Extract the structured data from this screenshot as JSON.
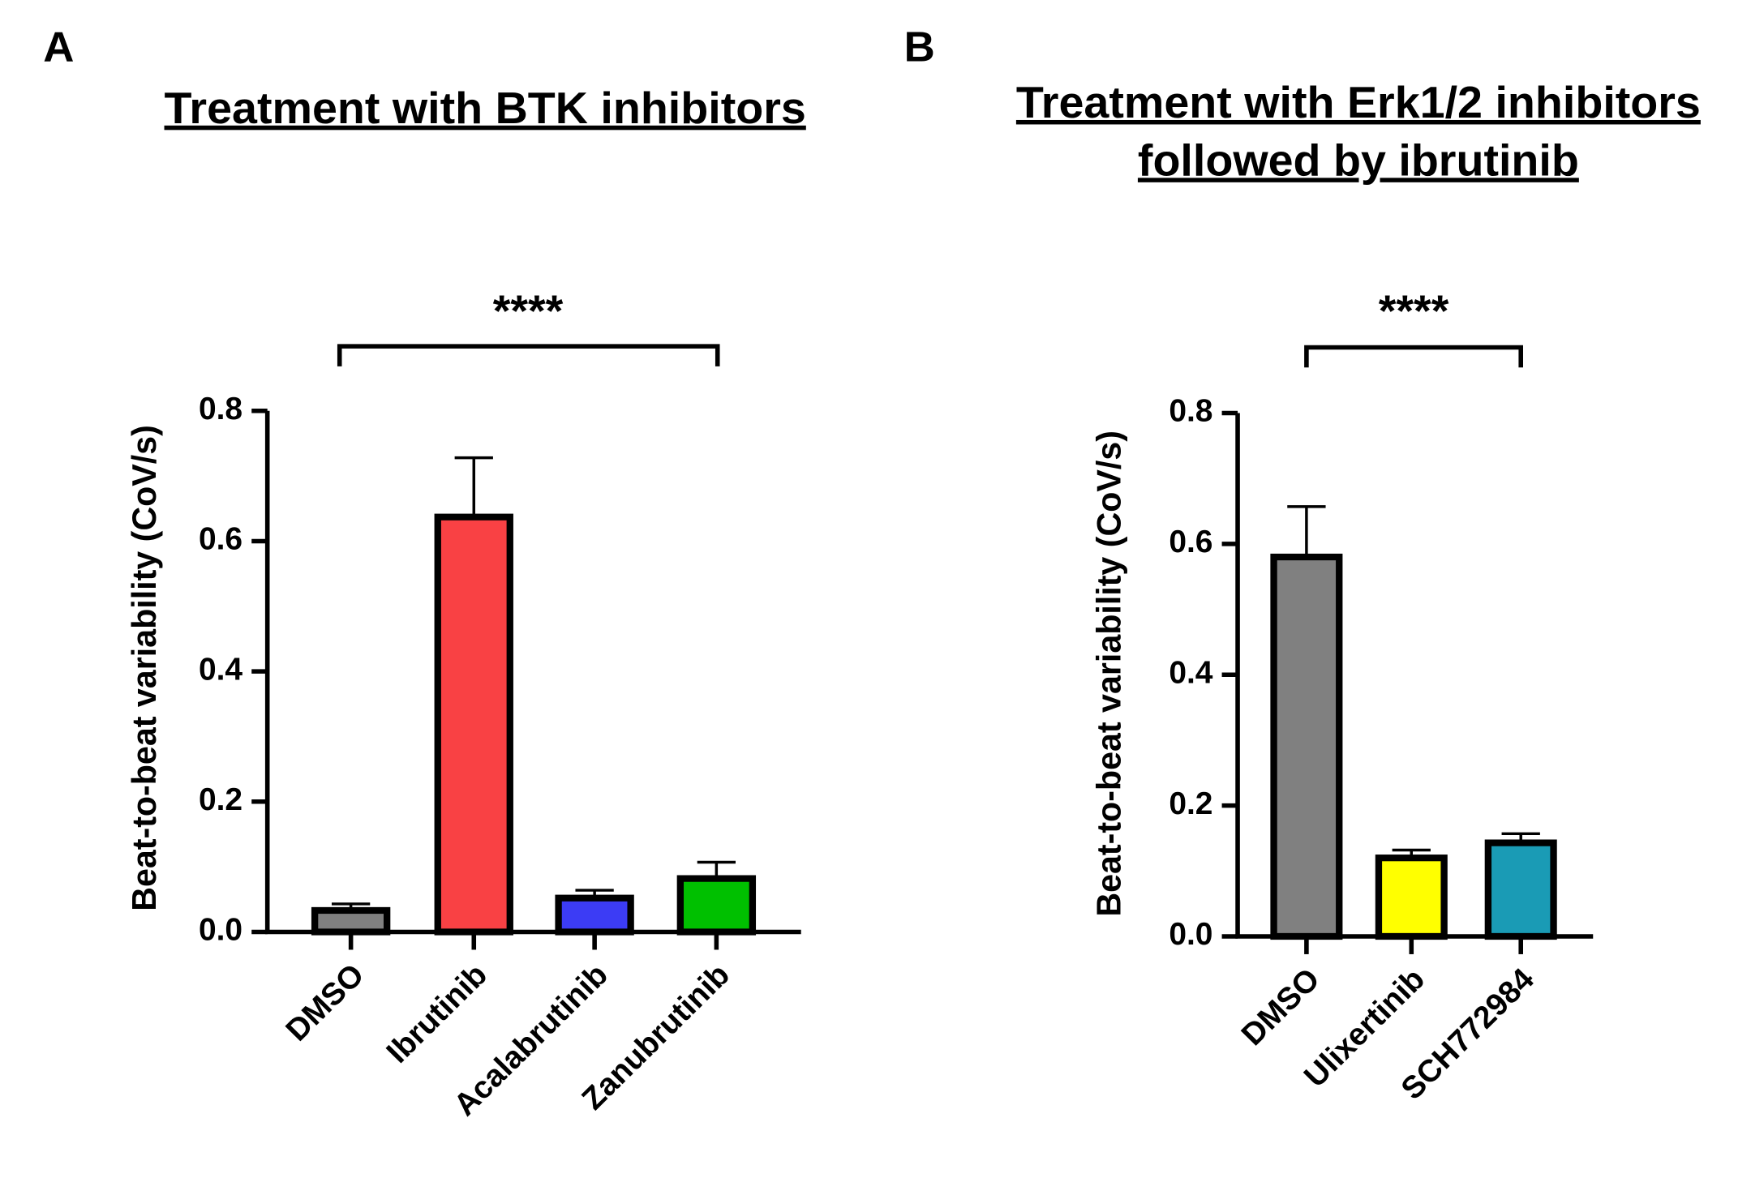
{
  "chart_data": [
    {
      "type": "bar",
      "panel": "A",
      "title": [
        "Treatment with BTK inhibitors"
      ],
      "ylabel": "Beat-to-beat variability (CoV/s)",
      "annotation": "****",
      "categories": [
        "DMSO",
        "Ibrutinib",
        "Acalabrutinib",
        "Zanubrutinib"
      ],
      "values": [
        0.033,
        0.637,
        0.052,
        0.082
      ],
      "errors": [
        0.01,
        0.091,
        0.012,
        0.025
      ],
      "colors": [
        "#808080",
        "#f94144",
        "#3c3cf5",
        "#00c000"
      ],
      "ylim": [
        0,
        0.8
      ],
      "yticks": [
        {
          "value": 0,
          "label": "0.0"
        },
        0.2,
        0.4,
        0.6,
        0.8
      ]
    },
    {
      "type": "bar",
      "panel": "B",
      "title": [
        "Treatment with Erk1/2 inhibitors",
        "followed by ibrutinib"
      ],
      "ylabel": "Beat-to-beat variability (CoV/s)",
      "annotation": "****",
      "categories": [
        "DMSO",
        "Ulixertinib",
        "SCH772984"
      ],
      "values": [
        0.58,
        0.12,
        0.143
      ],
      "errors": [
        0.077,
        0.012,
        0.014
      ],
      "colors": [
        "#808080",
        "#ffff00",
        "#1a9bb5"
      ],
      "ylim": [
        0,
        0.8
      ],
      "yticks": [
        {
          "value": 0,
          "label": "0.0"
        },
        0.2,
        0.4,
        0.6,
        0.8
      ]
    }
  ]
}
